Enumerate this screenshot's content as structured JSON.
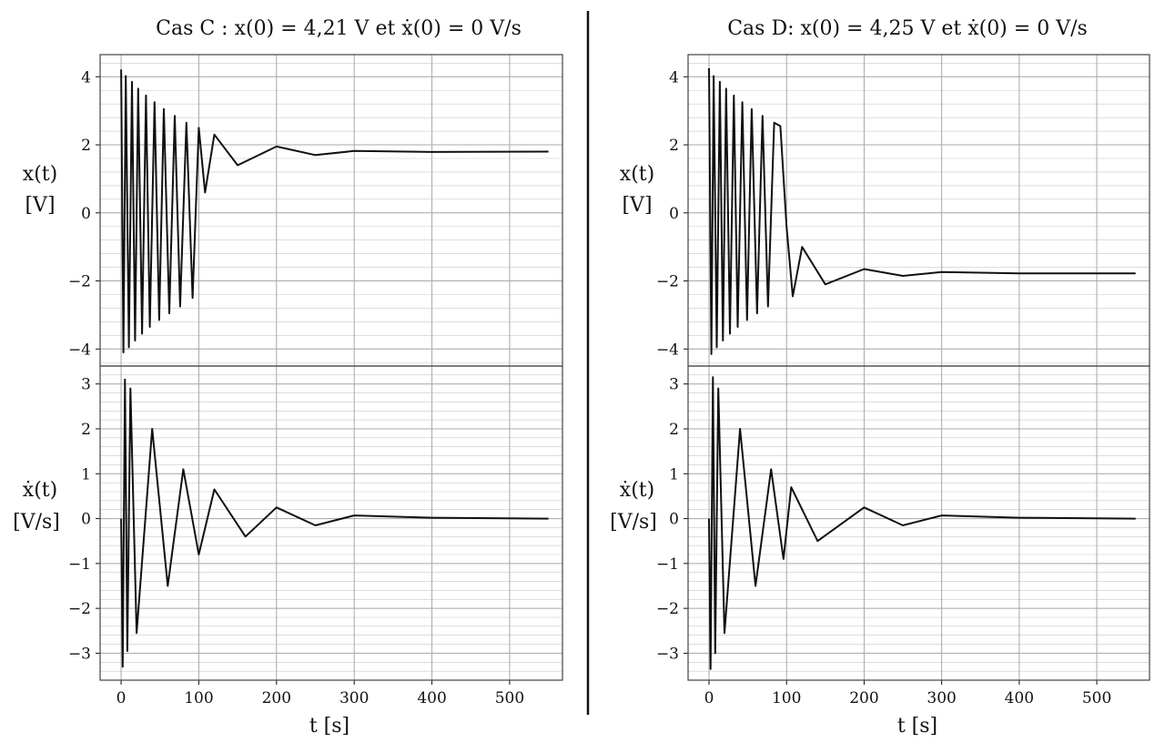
{
  "divider_color": "#111111",
  "line_color": "#111111",
  "grid_color": "#c8c8c8",
  "chart_data": [
    {
      "type": "line",
      "title": "Cas C : x(0) = 4,21 V et ẋ(0) = 0 V/s",
      "xlabel": "t [s]",
      "xlim": [
        -27,
        568
      ],
      "xticks": [
        0,
        100,
        200,
        300,
        400,
        500
      ],
      "series": [
        {
          "ylabel_top": "x(t)",
          "ylabel_bottom": "[V]",
          "ylim": [
            -4.5,
            4.65
          ],
          "yticks": [
            -4,
            -2,
            0,
            2,
            4
          ],
          "points": [
            [
              0,
              4.21
            ],
            [
              3,
              -4.1
            ],
            [
              6,
              4.02
            ],
            [
              10,
              -3.95
            ],
            [
              14,
              3.85
            ],
            [
              18,
              -3.75
            ],
            [
              22,
              3.65
            ],
            [
              27,
              -3.55
            ],
            [
              32,
              3.45
            ],
            [
              37,
              -3.35
            ],
            [
              43,
              3.25
            ],
            [
              49,
              -3.15
            ],
            [
              55,
              3.05
            ],
            [
              62,
              -2.95
            ],
            [
              69,
              2.85
            ],
            [
              76,
              -2.75
            ],
            [
              84,
              2.65
            ],
            [
              92,
              -2.5
            ],
            [
              100,
              2.5
            ],
            [
              108,
              0.6
            ],
            [
              120,
              2.3
            ],
            [
              150,
              1.4
            ],
            [
              200,
              1.95
            ],
            [
              250,
              1.7
            ],
            [
              300,
              1.82
            ],
            [
              400,
              1.79
            ],
            [
              550,
              1.8
            ]
          ]
        },
        {
          "ylabel_top": "ẋ(t)",
          "ylabel_bottom": "[V/s]",
          "ylim": [
            -3.6,
            3.4
          ],
          "yticks": [
            -3,
            -2,
            -1,
            0,
            1,
            2,
            3
          ],
          "points": [
            [
              0,
              0
            ],
            [
              2,
              -3.3
            ],
            [
              5,
              3.1
            ],
            [
              8,
              -2.95
            ],
            [
              12,
              2.9
            ],
            [
              20,
              -2.55
            ],
            [
              40,
              2.0
            ],
            [
              60,
              -1.5
            ],
            [
              80,
              1.1
            ],
            [
              100,
              -0.8
            ],
            [
              120,
              0.65
            ],
            [
              160,
              -0.4
            ],
            [
              200,
              0.25
            ],
            [
              250,
              -0.15
            ],
            [
              300,
              0.07
            ],
            [
              400,
              0.02
            ],
            [
              550,
              0.0
            ]
          ]
        }
      ]
    },
    {
      "type": "line",
      "title": "Cas D: x(0) = 4,25 V et ẋ(0) = 0 V/s",
      "xlabel": "t [s]",
      "xlim": [
        -27,
        568
      ],
      "xticks": [
        0,
        100,
        200,
        300,
        400,
        500
      ],
      "series": [
        {
          "ylabel_top": "x(t)",
          "ylabel_bottom": "[V]",
          "ylim": [
            -4.5,
            4.65
          ],
          "yticks": [
            -4,
            -2,
            0,
            2,
            4
          ],
          "points": [
            [
              0,
              4.25
            ],
            [
              3,
              -4.15
            ],
            [
              6,
              4.02
            ],
            [
              10,
              -3.95
            ],
            [
              14,
              3.85
            ],
            [
              18,
              -3.75
            ],
            [
              22,
              3.65
            ],
            [
              27,
              -3.55
            ],
            [
              32,
              3.45
            ],
            [
              37,
              -3.35
            ],
            [
              43,
              3.25
            ],
            [
              49,
              -3.15
            ],
            [
              55,
              3.05
            ],
            [
              62,
              -2.95
            ],
            [
              69,
              2.85
            ],
            [
              76,
              -2.75
            ],
            [
              84,
              2.65
            ],
            [
              92,
              2.55
            ],
            [
              100,
              -0.4
            ],
            [
              108,
              -2.45
            ],
            [
              120,
              -1.0
            ],
            [
              150,
              -2.1
            ],
            [
              200,
              -1.65
            ],
            [
              250,
              -1.85
            ],
            [
              300,
              -1.74
            ],
            [
              400,
              -1.78
            ],
            [
              550,
              -1.78
            ]
          ]
        },
        {
          "ylabel_top": "ẋ(t)",
          "ylabel_bottom": "[V/s]",
          "ylim": [
            -3.6,
            3.4
          ],
          "yticks": [
            -3,
            -2,
            -1,
            0,
            1,
            2,
            3
          ],
          "points": [
            [
              0,
              0
            ],
            [
              2,
              -3.35
            ],
            [
              5,
              3.15
            ],
            [
              8,
              -3.0
            ],
            [
              12,
              2.9
            ],
            [
              20,
              -2.55
            ],
            [
              40,
              2.0
            ],
            [
              60,
              -1.5
            ],
            [
              80,
              1.1
            ],
            [
              96,
              -0.9
            ],
            [
              106,
              0.7
            ],
            [
              140,
              -0.5
            ],
            [
              200,
              0.25
            ],
            [
              250,
              -0.15
            ],
            [
              300,
              0.07
            ],
            [
              400,
              0.02
            ],
            [
              550,
              0.0
            ]
          ]
        }
      ]
    }
  ]
}
